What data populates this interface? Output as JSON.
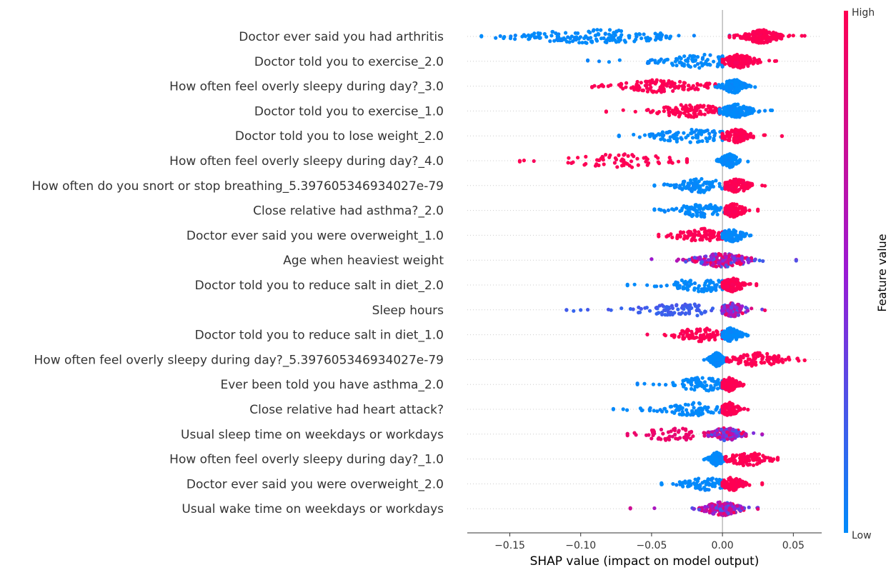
{
  "chart_data": {
    "type": "scatter",
    "subtype": "shap-beeswarm",
    "title": "",
    "xlabel": "SHAP value (impact on model output)",
    "ylabel": "",
    "xlim": [
      -0.18,
      0.07
    ],
    "xticks": [
      -0.15,
      -0.1,
      -0.05,
      0.0,
      0.05
    ],
    "xtick_labels": [
      "−0.15",
      "−0.10",
      "−0.05",
      "0.00",
      "0.05"
    ],
    "grid": false,
    "zero_line": true,
    "colors": {
      "low": "#008bfb",
      "mid": "#9a1ad4",
      "high": "#ff0052",
      "zero_line": "#999999",
      "row_guide": "#cccccc"
    },
    "colorbar": {
      "title": "Feature value",
      "high_label": "High",
      "low_label": "Low",
      "placement": "right"
    },
    "features": [
      {
        "name": "Doctor ever said you had arthritis",
        "groups": [
          {
            "level": 0.0,
            "min": -0.17,
            "max": 0.005,
            "center": -0.09,
            "spread": 0.035,
            "n": 160,
            "outliers": [
              -0.17,
              -0.16,
              -0.14,
              -0.13,
              -0.045,
              -0.02
            ]
          },
          {
            "level": 1.0,
            "min": 0.005,
            "max": 0.058,
            "center": 0.028,
            "spread": 0.008,
            "n": 170,
            "outliers": [
              0.05,
              0.056
            ]
          }
        ]
      },
      {
        "name": "Doctor told you to exercise_2.0",
        "groups": [
          {
            "level": 0.0,
            "min": -0.095,
            "max": 0.0,
            "center": -0.015,
            "spread": 0.02,
            "n": 110,
            "outliers": [
              -0.095,
              -0.087,
              -0.08
            ]
          },
          {
            "level": 1.0,
            "min": 0.0,
            "max": 0.038,
            "center": 0.012,
            "spread": 0.007,
            "n": 130,
            "outliers": [
              0.033,
              0.037
            ]
          }
        ]
      },
      {
        "name": "How often feel overly sleepy during day?_3.0",
        "groups": [
          {
            "level": 1.0,
            "min": -0.092,
            "max": -0.005,
            "center": -0.04,
            "spread": 0.02,
            "n": 130,
            "outliers": [
              -0.092,
              -0.085
            ]
          },
          {
            "level": 0.0,
            "min": -0.005,
            "max": 0.023,
            "center": 0.008,
            "spread": 0.005,
            "n": 120,
            "outliers": [
              0.02
            ]
          }
        ]
      },
      {
        "name": "Doctor told you to exercise_1.0",
        "groups": [
          {
            "level": 1.0,
            "min": -0.082,
            "max": -0.002,
            "center": -0.022,
            "spread": 0.015,
            "n": 110,
            "outliers": [
              -0.082,
              -0.07
            ]
          },
          {
            "level": 0.0,
            "min": -0.002,
            "max": 0.035,
            "center": 0.01,
            "spread": 0.007,
            "n": 130,
            "outliers": [
              0.03,
              0.034
            ]
          }
        ]
      },
      {
        "name": "Doctor told you to lose weight_2.0",
        "groups": [
          {
            "level": 0.0,
            "min": -0.073,
            "max": 0.0,
            "center": -0.02,
            "spread": 0.02,
            "n": 110,
            "outliers": [
              -0.073
            ]
          },
          {
            "level": 1.0,
            "min": 0.0,
            "max": 0.042,
            "center": 0.01,
            "spread": 0.006,
            "n": 120,
            "outliers": [
              0.03,
              0.042
            ]
          }
        ]
      },
      {
        "name": "How often feel overly sleepy during day?_4.0",
        "groups": [
          {
            "level": 1.0,
            "min": -0.143,
            "max": -0.025,
            "center": -0.07,
            "spread": 0.025,
            "n": 70,
            "outliers": [
              -0.143,
              -0.14,
              -0.133,
              -0.025
            ]
          },
          {
            "level": 0.0,
            "min": -0.004,
            "max": 0.018,
            "center": 0.005,
            "spread": 0.004,
            "n": 110,
            "outliers": []
          }
        ]
      },
      {
        "name": "How often do you snort or stop breathing_5.397605346934027e-79",
        "groups": [
          {
            "level": 0.0,
            "min": -0.048,
            "max": 0.002,
            "center": -0.015,
            "spread": 0.012,
            "n": 90,
            "outliers": [
              -0.048
            ]
          },
          {
            "level": 1.0,
            "min": 0.002,
            "max": 0.03,
            "center": 0.01,
            "spread": 0.006,
            "n": 110,
            "outliers": [
              0.028
            ]
          }
        ]
      },
      {
        "name": "Close relative had asthma?_2.0",
        "groups": [
          {
            "level": 0.0,
            "min": -0.048,
            "max": 0.002,
            "center": -0.015,
            "spread": 0.012,
            "n": 90,
            "outliers": [
              -0.048
            ]
          },
          {
            "level": 1.0,
            "min": 0.002,
            "max": 0.025,
            "center": 0.008,
            "spread": 0.005,
            "n": 110,
            "outliers": [
              0.025
            ]
          }
        ]
      },
      {
        "name": "Doctor ever said you were overweight_1.0",
        "groups": [
          {
            "level": 1.0,
            "min": -0.045,
            "max": 0.0,
            "center": -0.015,
            "spread": 0.012,
            "n": 90,
            "outliers": [
              -0.045
            ]
          },
          {
            "level": 0.0,
            "min": 0.0,
            "max": 0.02,
            "center": 0.007,
            "spread": 0.005,
            "n": 110,
            "outliers": []
          }
        ]
      },
      {
        "name": "Age when heaviest weight",
        "groups": [
          {
            "level": "mixed",
            "min": -0.05,
            "max": 0.052,
            "center": 0.0,
            "spread": 0.012,
            "n": 200,
            "outliers": [
              -0.05,
              0.052
            ]
          }
        ]
      },
      {
        "name": "Doctor told you to reduce salt in diet_2.0",
        "groups": [
          {
            "level": 0.0,
            "min": -0.067,
            "max": 0.0,
            "center": -0.015,
            "spread": 0.015,
            "n": 90,
            "outliers": [
              -0.067,
              -0.062
            ]
          },
          {
            "level": 1.0,
            "min": 0.0,
            "max": 0.024,
            "center": 0.007,
            "spread": 0.005,
            "n": 110,
            "outliers": [
              0.024
            ]
          }
        ]
      },
      {
        "name": "Sleep hours",
        "groups": [
          {
            "level": 0.2,
            "min": -0.11,
            "max": 0.0,
            "center": -0.03,
            "spread": 0.02,
            "n": 90,
            "outliers": [
              -0.11,
              -0.105,
              -0.1,
              -0.095
            ]
          },
          {
            "level": "mixed",
            "min": 0.0,
            "max": 0.03,
            "center": 0.007,
            "spread": 0.006,
            "n": 120,
            "outliers": [
              0.028
            ]
          }
        ]
      },
      {
        "name": "Doctor told you to reduce salt in diet_1.0",
        "groups": [
          {
            "level": 1.0,
            "min": -0.053,
            "max": 0.0,
            "center": -0.015,
            "spread": 0.012,
            "n": 90,
            "outliers": [
              -0.053
            ]
          },
          {
            "level": 0.0,
            "min": 0.0,
            "max": 0.018,
            "center": 0.006,
            "spread": 0.004,
            "n": 110,
            "outliers": []
          }
        ]
      },
      {
        "name": "How often feel overly sleepy during day?_5.397605346934027e-79",
        "groups": [
          {
            "level": 0.0,
            "min": -0.013,
            "max": 0.003,
            "center": -0.004,
            "spread": 0.003,
            "n": 120,
            "outliers": []
          },
          {
            "level": 1.0,
            "min": 0.003,
            "max": 0.058,
            "center": 0.025,
            "spread": 0.012,
            "n": 100,
            "outliers": [
              0.053,
              0.058
            ]
          }
        ]
      },
      {
        "name": "Ever been told you have asthma_2.0",
        "groups": [
          {
            "level": 0.0,
            "min": -0.06,
            "max": 0.0,
            "center": -0.015,
            "spread": 0.013,
            "n": 90,
            "outliers": [
              -0.06,
              -0.055
            ]
          },
          {
            "level": 1.0,
            "min": 0.0,
            "max": 0.015,
            "center": 0.005,
            "spread": 0.004,
            "n": 110,
            "outliers": []
          }
        ]
      },
      {
        "name": "Close relative had heart attack?",
        "groups": [
          {
            "level": 0.0,
            "min": -0.077,
            "max": 0.0,
            "center": -0.02,
            "spread": 0.015,
            "n": 90,
            "outliers": [
              -0.077,
              -0.07
            ]
          },
          {
            "level": 1.0,
            "min": 0.0,
            "max": 0.018,
            "center": 0.005,
            "spread": 0.004,
            "n": 110,
            "outliers": []
          }
        ]
      },
      {
        "name": "Usual sleep time on weekdays or workdays",
        "groups": [
          {
            "level": 0.9,
            "min": -0.067,
            "max": -0.01,
            "center": -0.035,
            "spread": 0.015,
            "n": 60,
            "outliers": [
              -0.067
            ]
          },
          {
            "level": "mixed",
            "min": -0.01,
            "max": 0.028,
            "center": 0.003,
            "spread": 0.007,
            "n": 140,
            "outliers": [
              0.028
            ]
          }
        ]
      },
      {
        "name": "How often feel overly sleepy during day?_1.0",
        "groups": [
          {
            "level": 0.0,
            "min": -0.013,
            "max": 0.002,
            "center": -0.004,
            "spread": 0.003,
            "n": 120,
            "outliers": []
          },
          {
            "level": 1.0,
            "min": 0.002,
            "max": 0.039,
            "center": 0.018,
            "spread": 0.009,
            "n": 100,
            "outliers": [
              0.035,
              0.039
            ]
          }
        ]
      },
      {
        "name": "Doctor ever said you were overweight_2.0",
        "groups": [
          {
            "level": 0.0,
            "min": -0.043,
            "max": 0.0,
            "center": -0.012,
            "spread": 0.01,
            "n": 90,
            "outliers": [
              -0.043
            ]
          },
          {
            "level": 1.0,
            "min": 0.0,
            "max": 0.028,
            "center": 0.007,
            "spread": 0.005,
            "n": 110,
            "outliers": [
              0.028
            ]
          }
        ]
      },
      {
        "name": "Usual wake time on weekdays or workdays",
        "groups": [
          {
            "level": "mixed",
            "min": -0.065,
            "max": 0.025,
            "center": 0.0,
            "spread": 0.008,
            "n": 180,
            "outliers": [
              -0.065,
              -0.048,
              0.025
            ]
          }
        ]
      }
    ]
  }
}
